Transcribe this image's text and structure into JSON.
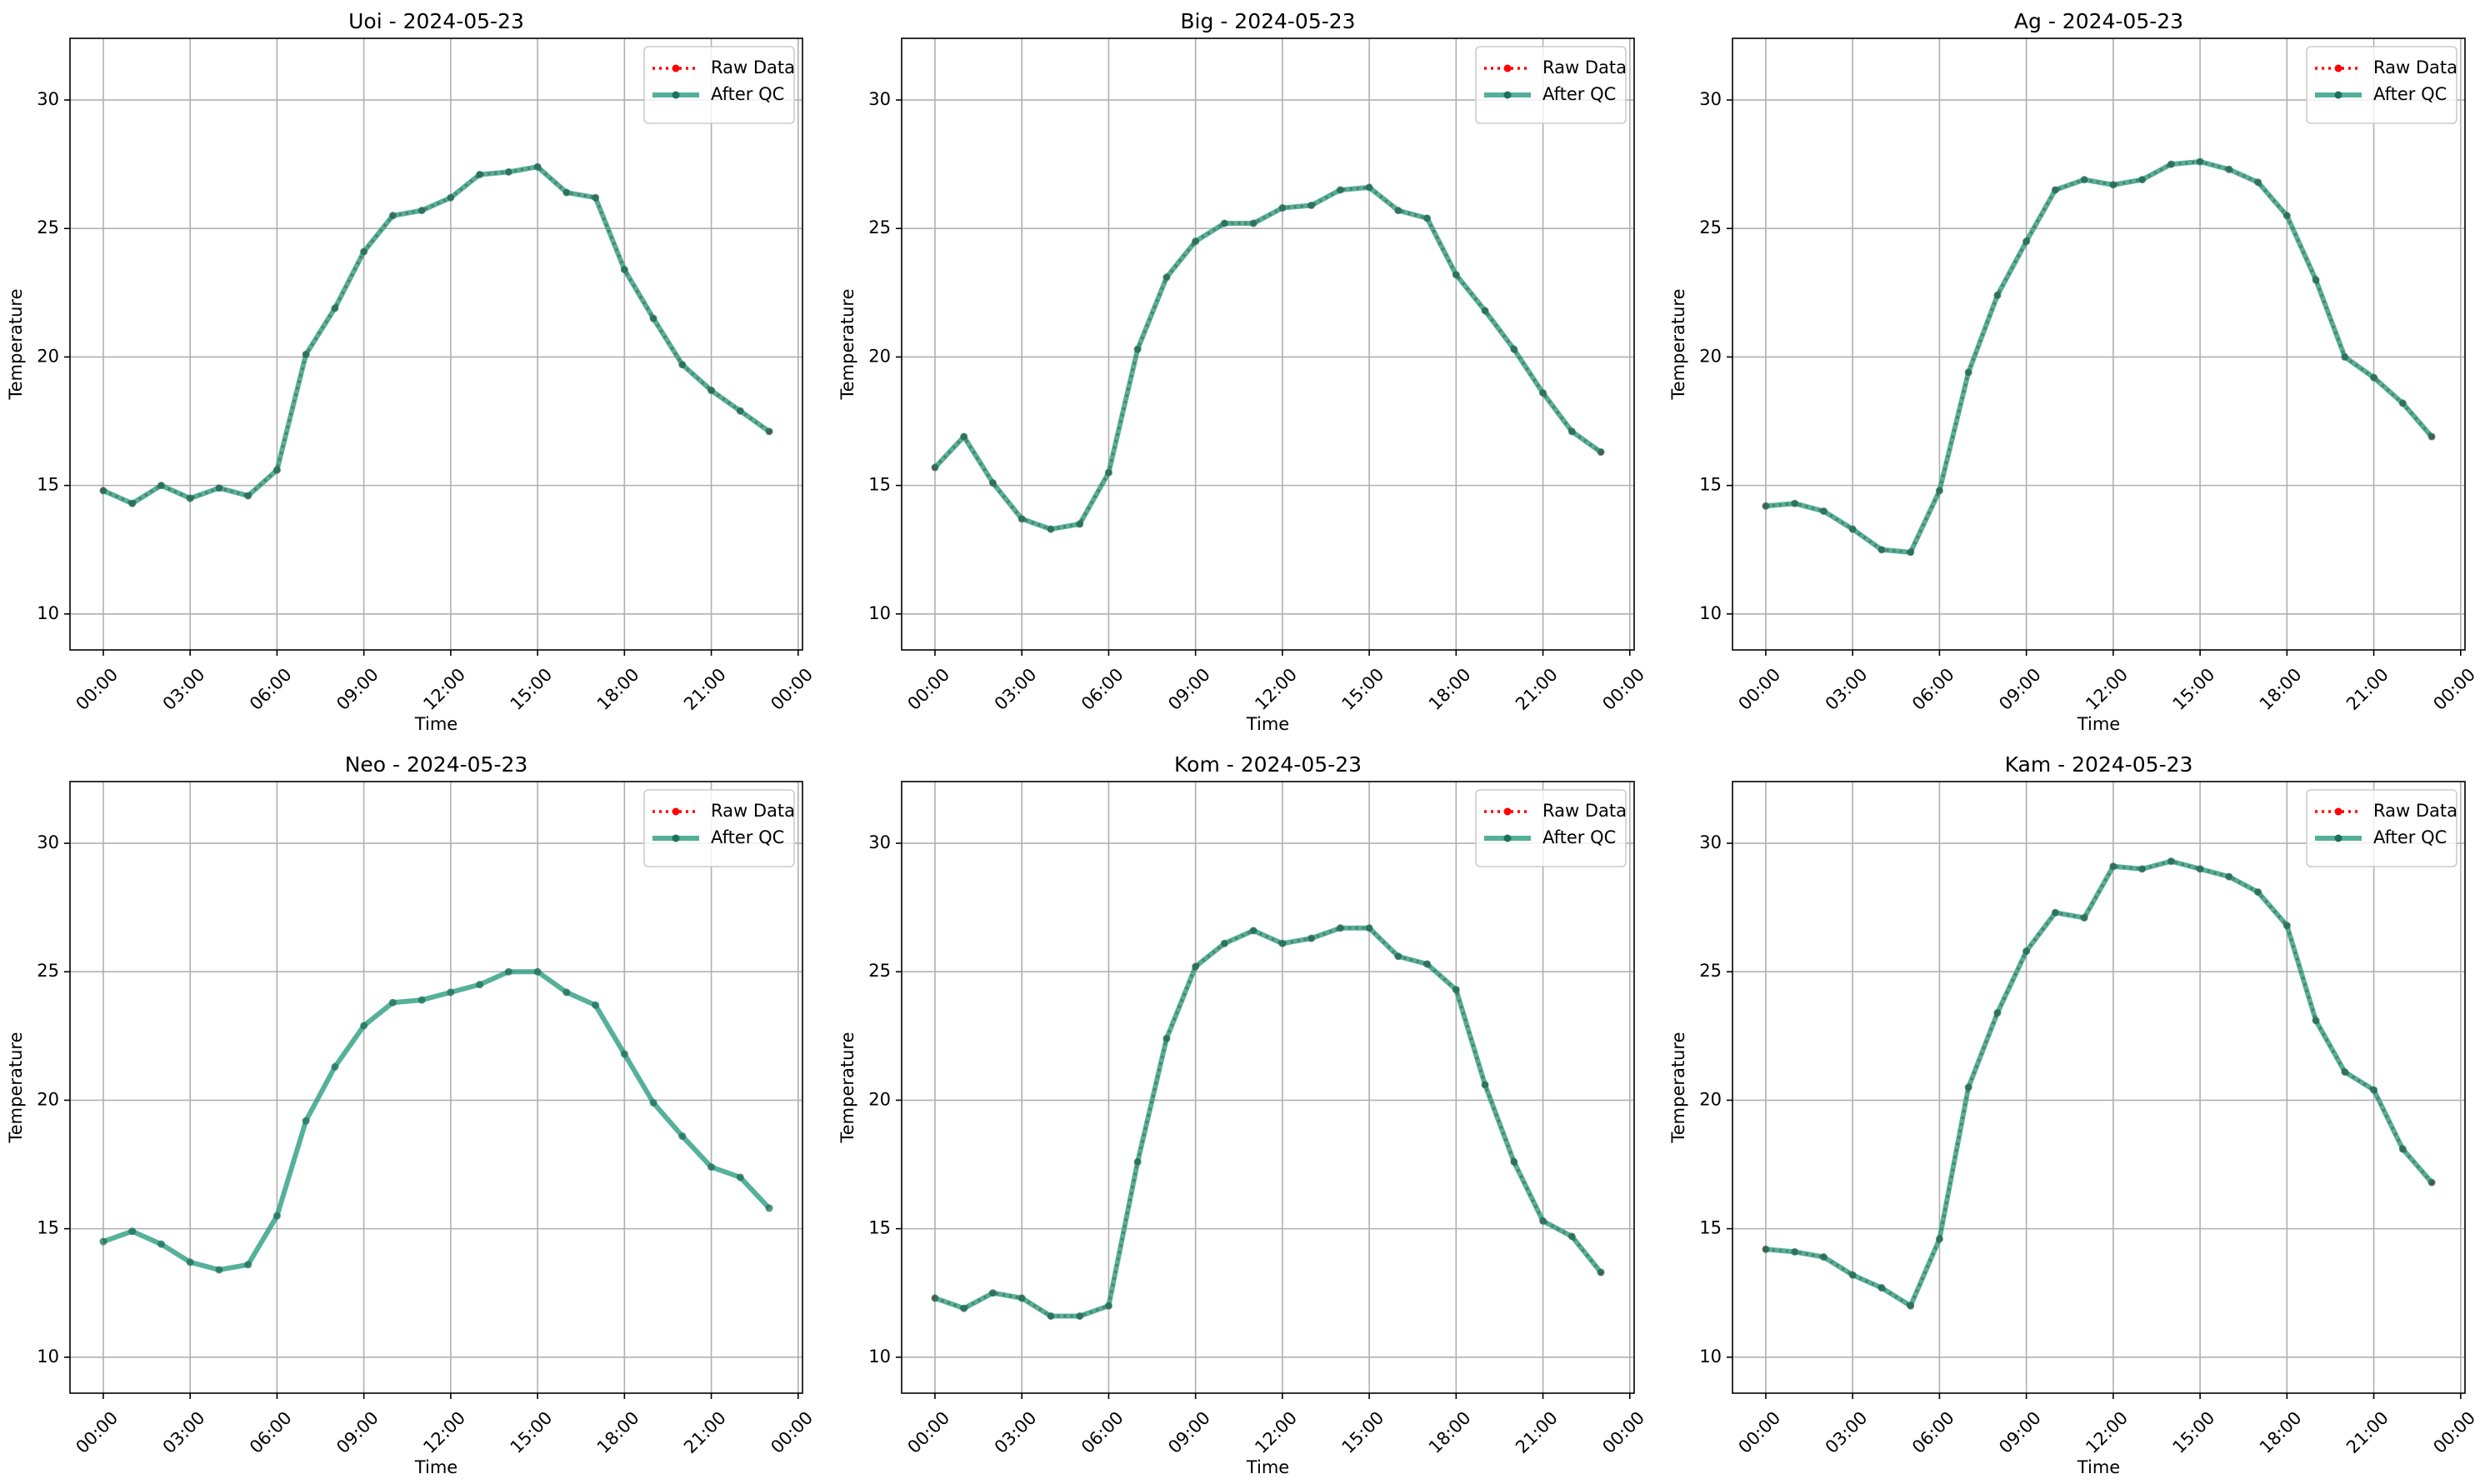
{
  "chart_data": [
    {
      "type": "line",
      "title": "Uoi - 2024-05-23",
      "xlabel": "Time",
      "ylabel": "Temperature",
      "x": [
        0,
        1,
        2,
        3,
        4,
        5,
        6,
        7,
        8,
        9,
        10,
        11,
        12,
        13,
        14,
        15,
        16,
        17,
        18,
        19,
        20,
        21,
        22,
        23
      ],
      "xlim": [
        -1.15,
        24.15
      ],
      "xticks": [
        {
          "value": 0,
          "label": "00:00"
        },
        {
          "value": 3,
          "label": "03:00"
        },
        {
          "value": 6,
          "label": "06:00"
        },
        {
          "value": 9,
          "label": "09:00"
        },
        {
          "value": 12,
          "label": "12:00"
        },
        {
          "value": 15,
          "label": "15:00"
        },
        {
          "value": 18,
          "label": "18:00"
        },
        {
          "value": 21,
          "label": "21:00"
        },
        {
          "value": 24,
          "label": "00:00"
        }
      ],
      "ylim": [
        8.6,
        32.4
      ],
      "yticks": [
        10,
        15,
        20,
        25,
        30
      ],
      "grid": true,
      "legend": "upper right",
      "series": [
        {
          "name": "Raw Data",
          "color": "#ff0000",
          "linestyle": "dotted",
          "values": [
            14.8,
            14.3,
            15.0,
            14.5,
            14.9,
            14.6,
            15.6,
            20.1,
            21.9,
            24.1,
            25.5,
            25.7,
            26.2,
            27.1,
            27.2,
            27.4,
            26.4,
            26.2,
            23.4,
            21.5,
            19.7,
            18.7,
            17.9,
            17.1
          ]
        },
        {
          "name": "After QC",
          "color": "#2a9d7f",
          "linestyle": "solid",
          "values": [
            14.8,
            14.3,
            15.0,
            14.5,
            14.9,
            14.6,
            15.6,
            20.1,
            21.9,
            24.1,
            25.5,
            25.7,
            26.2,
            27.1,
            27.2,
            27.4,
            26.4,
            26.2,
            23.4,
            21.5,
            19.7,
            18.7,
            17.9,
            17.1
          ]
        }
      ]
    },
    {
      "type": "line",
      "title": "Big - 2024-05-23",
      "xlabel": "Time",
      "ylabel": "Temperature",
      "x": [
        0,
        1,
        2,
        3,
        4,
        5,
        6,
        7,
        8,
        9,
        10,
        11,
        12,
        13,
        14,
        15,
        16,
        17,
        18,
        19,
        20,
        21,
        22,
        23
      ],
      "xlim": [
        -1.15,
        24.15
      ],
      "xticks": [
        {
          "value": 0,
          "label": "00:00"
        },
        {
          "value": 3,
          "label": "03:00"
        },
        {
          "value": 6,
          "label": "06:00"
        },
        {
          "value": 9,
          "label": "09:00"
        },
        {
          "value": 12,
          "label": "12:00"
        },
        {
          "value": 15,
          "label": "15:00"
        },
        {
          "value": 18,
          "label": "18:00"
        },
        {
          "value": 21,
          "label": "21:00"
        },
        {
          "value": 24,
          "label": "00:00"
        }
      ],
      "ylim": [
        8.6,
        32.4
      ],
      "yticks": [
        10,
        15,
        20,
        25,
        30
      ],
      "grid": true,
      "legend": "upper right",
      "series": [
        {
          "name": "Raw Data",
          "color": "#ff0000",
          "linestyle": "dotted",
          "values": [
            15.7,
            16.9,
            15.1,
            13.7,
            13.3,
            13.5,
            15.5,
            20.3,
            23.1,
            24.5,
            25.2,
            25.2,
            25.8,
            25.9,
            26.5,
            26.6,
            25.7,
            25.4,
            23.2,
            21.8,
            20.3,
            18.6,
            17.1,
            16.3
          ]
        },
        {
          "name": "After QC",
          "color": "#2a9d7f",
          "linestyle": "solid",
          "values": [
            15.7,
            16.9,
            15.1,
            13.7,
            13.3,
            13.5,
            15.5,
            20.3,
            23.1,
            24.5,
            25.2,
            25.2,
            25.8,
            25.9,
            26.5,
            26.6,
            25.7,
            25.4,
            23.2,
            21.8,
            20.3,
            18.6,
            17.1,
            16.3
          ]
        }
      ]
    },
    {
      "type": "line",
      "title": "Ag - 2024-05-23",
      "xlabel": "Time",
      "ylabel": "Temperature",
      "x": [
        0,
        1,
        2,
        3,
        4,
        5,
        6,
        7,
        8,
        9,
        10,
        11,
        12,
        13,
        14,
        15,
        16,
        17,
        18,
        19,
        20,
        21,
        22,
        23
      ],
      "xlim": [
        -1.15,
        24.15
      ],
      "xticks": [
        {
          "value": 0,
          "label": "00:00"
        },
        {
          "value": 3,
          "label": "03:00"
        },
        {
          "value": 6,
          "label": "06:00"
        },
        {
          "value": 9,
          "label": "09:00"
        },
        {
          "value": 12,
          "label": "12:00"
        },
        {
          "value": 15,
          "label": "15:00"
        },
        {
          "value": 18,
          "label": "18:00"
        },
        {
          "value": 21,
          "label": "21:00"
        },
        {
          "value": 24,
          "label": "00:00"
        }
      ],
      "ylim": [
        8.6,
        32.4
      ],
      "yticks": [
        10,
        15,
        20,
        25,
        30
      ],
      "grid": true,
      "legend": "upper right",
      "series": [
        {
          "name": "Raw Data",
          "color": "#ff0000",
          "linestyle": "dotted",
          "values": [
            14.2,
            14.3,
            14.0,
            13.3,
            12.5,
            12.4,
            14.8,
            19.4,
            22.4,
            24.5,
            26.5,
            26.9,
            26.7,
            26.9,
            27.5,
            27.6,
            27.3,
            26.8,
            25.5,
            23.0,
            20.0,
            19.2,
            18.2,
            16.9
          ]
        },
        {
          "name": "After QC",
          "color": "#2a9d7f",
          "linestyle": "solid",
          "values": [
            14.2,
            14.3,
            14.0,
            13.3,
            12.5,
            12.4,
            14.8,
            19.4,
            22.4,
            24.5,
            26.5,
            26.9,
            26.7,
            26.9,
            27.5,
            27.6,
            27.3,
            26.8,
            25.5,
            23.0,
            20.0,
            19.2,
            18.2,
            16.9
          ]
        }
      ]
    },
    {
      "type": "line",
      "title": "Neo - 2024-05-23",
      "xlabel": "Time",
      "ylabel": "Temperature",
      "x": [
        0,
        1,
        2,
        3,
        4,
        5,
        6,
        7,
        8,
        9,
        10,
        11,
        12,
        13,
        14,
        15,
        16,
        17,
        18,
        19,
        20,
        21,
        22,
        23
      ],
      "xlim": [
        -1.15,
        24.15
      ],
      "xticks": [
        {
          "value": 0,
          "label": "00:00"
        },
        {
          "value": 3,
          "label": "03:00"
        },
        {
          "value": 6,
          "label": "06:00"
        },
        {
          "value": 9,
          "label": "09:00"
        },
        {
          "value": 12,
          "label": "12:00"
        },
        {
          "value": 15,
          "label": "15:00"
        },
        {
          "value": 18,
          "label": "18:00"
        },
        {
          "value": 21,
          "label": "21:00"
        },
        {
          "value": 24,
          "label": "00:00"
        }
      ],
      "ylim": [
        8.6,
        32.4
      ],
      "yticks": [
        10,
        15,
        20,
        25,
        30
      ],
      "grid": true,
      "legend": "upper right",
      "series": [
        {
          "name": "Raw Data",
          "color": "#ff0000",
          "linestyle": "dotted",
          "values": [
            null,
            null,
            null,
            null,
            null,
            null,
            null,
            null,
            null,
            null,
            null,
            null,
            null,
            null,
            null,
            null,
            null,
            null,
            null,
            null,
            null,
            null,
            null,
            null
          ]
        },
        {
          "name": "After QC",
          "color": "#2a9d7f",
          "linestyle": "solid",
          "values": [
            14.5,
            14.9,
            14.4,
            13.7,
            13.4,
            13.6,
            15.5,
            19.2,
            21.3,
            22.9,
            23.8,
            23.9,
            24.2,
            24.5,
            25.0,
            25.0,
            24.2,
            23.7,
            21.8,
            19.9,
            18.6,
            17.4,
            17.0,
            15.8
          ]
        }
      ]
    },
    {
      "type": "line",
      "title": "Kom - 2024-05-23",
      "xlabel": "Time",
      "ylabel": "Temperature",
      "x": [
        0,
        1,
        2,
        3,
        4,
        5,
        6,
        7,
        8,
        9,
        10,
        11,
        12,
        13,
        14,
        15,
        16,
        17,
        18,
        19,
        20,
        21,
        22,
        23
      ],
      "xlim": [
        -1.15,
        24.15
      ],
      "xticks": [
        {
          "value": 0,
          "label": "00:00"
        },
        {
          "value": 3,
          "label": "03:00"
        },
        {
          "value": 6,
          "label": "06:00"
        },
        {
          "value": 9,
          "label": "09:00"
        },
        {
          "value": 12,
          "label": "12:00"
        },
        {
          "value": 15,
          "label": "15:00"
        },
        {
          "value": 18,
          "label": "18:00"
        },
        {
          "value": 21,
          "label": "21:00"
        },
        {
          "value": 24,
          "label": "00:00"
        }
      ],
      "ylim": [
        8.6,
        32.4
      ],
      "yticks": [
        10,
        15,
        20,
        25,
        30
      ],
      "grid": true,
      "legend": "upper right",
      "series": [
        {
          "name": "Raw Data",
          "color": "#ff0000",
          "linestyle": "dotted",
          "values": [
            12.3,
            11.9,
            12.5,
            12.3,
            11.6,
            11.6,
            12.0,
            17.6,
            22.4,
            25.2,
            26.1,
            26.6,
            26.1,
            26.3,
            26.7,
            26.7,
            25.6,
            25.3,
            24.3,
            20.6,
            17.6,
            15.3,
            14.7,
            13.3
          ]
        },
        {
          "name": "After QC",
          "color": "#2a9d7f",
          "linestyle": "solid",
          "values": [
            12.3,
            11.9,
            12.5,
            12.3,
            11.6,
            11.6,
            12.0,
            17.6,
            22.4,
            25.2,
            26.1,
            26.6,
            26.1,
            26.3,
            26.7,
            26.7,
            25.6,
            25.3,
            24.3,
            20.6,
            17.6,
            15.3,
            14.7,
            13.3
          ]
        }
      ]
    },
    {
      "type": "line",
      "title": "Kam - 2024-05-23",
      "xlabel": "Time",
      "ylabel": "Temperature",
      "x": [
        0,
        1,
        2,
        3,
        4,
        5,
        6,
        7,
        8,
        9,
        10,
        11,
        12,
        13,
        14,
        15,
        16,
        17,
        18,
        19,
        20,
        21,
        22,
        23
      ],
      "xlim": [
        -1.15,
        24.15
      ],
      "xticks": [
        {
          "value": 0,
          "label": "00:00"
        },
        {
          "value": 3,
          "label": "03:00"
        },
        {
          "value": 6,
          "label": "06:00"
        },
        {
          "value": 9,
          "label": "09:00"
        },
        {
          "value": 12,
          "label": "12:00"
        },
        {
          "value": 15,
          "label": "15:00"
        },
        {
          "value": 18,
          "label": "18:00"
        },
        {
          "value": 21,
          "label": "21:00"
        },
        {
          "value": 24,
          "label": "00:00"
        }
      ],
      "ylim": [
        8.6,
        32.4
      ],
      "yticks": [
        10,
        15,
        20,
        25,
        30
      ],
      "grid": true,
      "legend": "upper right",
      "series": [
        {
          "name": "Raw Data",
          "color": "#ff0000",
          "linestyle": "dotted",
          "values": [
            14.2,
            14.1,
            13.9,
            13.2,
            12.7,
            12.0,
            14.6,
            20.5,
            23.4,
            25.8,
            27.3,
            27.1,
            29.1,
            29.0,
            29.3,
            29.0,
            28.7,
            28.1,
            26.8,
            23.1,
            21.1,
            20.4,
            18.1,
            16.8
          ]
        },
        {
          "name": "After QC",
          "color": "#2a9d7f",
          "linestyle": "solid",
          "values": [
            14.2,
            14.1,
            13.9,
            13.2,
            12.7,
            12.0,
            14.6,
            20.5,
            23.4,
            25.8,
            27.3,
            27.1,
            29.1,
            29.0,
            29.3,
            29.0,
            28.7,
            28.1,
            26.8,
            23.1,
            21.1,
            20.4,
            18.1,
            16.8
          ]
        }
      ]
    }
  ]
}
